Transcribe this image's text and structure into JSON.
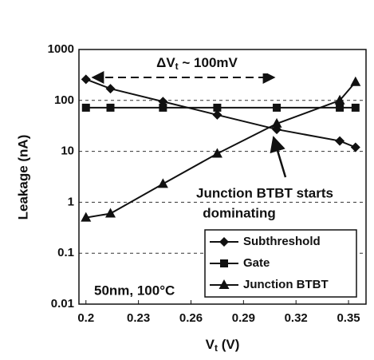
{
  "chart_data": {
    "type": "line",
    "x_label": [
      "V",
      "t",
      " (V)"
    ],
    "y_label": "Leakage (nA)",
    "x": [
      0.2,
      0.214,
      0.244,
      0.275,
      0.309,
      0.345,
      0.354
    ],
    "series": [
      {
        "name": "Subthreshold",
        "color": "#111111",
        "marker": "diamond",
        "values": [
          260,
          170,
          95,
          52,
          27,
          16,
          12
        ]
      },
      {
        "name": "Gate",
        "color": "#111111",
        "marker": "square",
        "values": [
          72,
          72,
          72,
          72,
          72,
          72,
          72
        ]
      },
      {
        "name": "Junction BTBT",
        "color": "#111111",
        "marker": "triangle",
        "values": [
          0.5,
          0.6,
          2.3,
          9,
          35,
          100,
          230
        ]
      }
    ],
    "xlim": [
      0.196,
      0.36
    ],
    "xticks": [
      0.2,
      0.23,
      0.26,
      0.29,
      0.32,
      0.35
    ],
    "ylim": [
      0.01,
      1000
    ],
    "yticks": [
      1000,
      100,
      10,
      1,
      0.1,
      0.01
    ],
    "log_y": true,
    "grid": "y",
    "legend": "lower right",
    "annotations": [
      [
        "ΔV",
        "t",
        " ~ 100mV"
      ],
      "Junction BTBT starts",
      "dominating",
      "50nm, 100°C"
    ]
  }
}
